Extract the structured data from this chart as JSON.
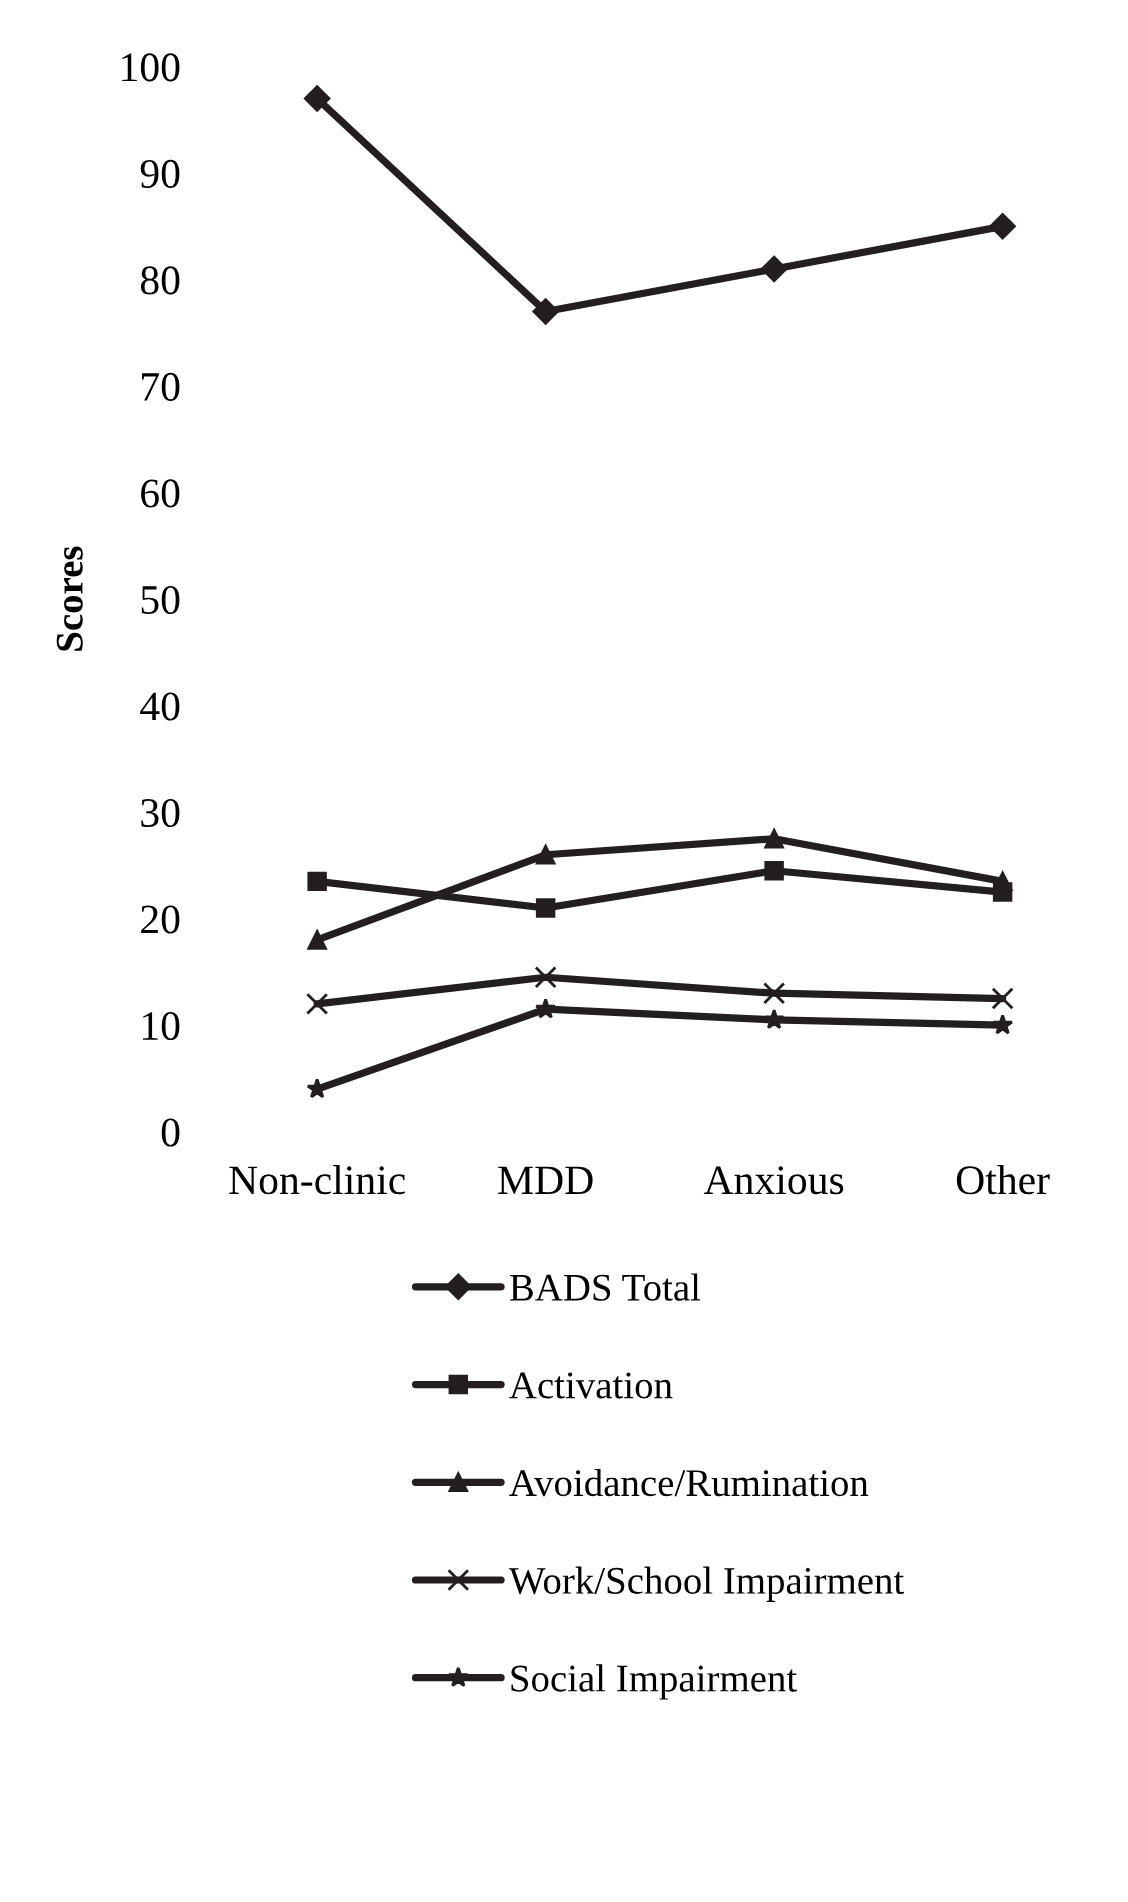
{
  "chart_data": {
    "type": "line",
    "ylabel": "Scores",
    "categories": [
      "Non-clinic",
      "MDD",
      "Anxious",
      "Other"
    ],
    "ylim": [
      0,
      100
    ],
    "yticks": [
      0,
      10,
      20,
      30,
      40,
      50,
      60,
      70,
      80,
      90,
      100
    ],
    "grid": false,
    "legend": "bottom",
    "line_style": "solid",
    "series": [
      {
        "name": "BADS Total",
        "color": "#231f20",
        "marker": "diamond",
        "values": [
          97,
          77,
          81,
          85
        ]
      },
      {
        "name": "Activation",
        "color": "#231f20",
        "marker": "square",
        "values": [
          23.5,
          21,
          24.5,
          22.5
        ]
      },
      {
        "name": "Avoidance/Rumination",
        "color": "#231f20",
        "marker": "triangle",
        "values": [
          18,
          26,
          27.5,
          23.5
        ]
      },
      {
        "name": "Work/School Impairment",
        "color": "#231f20",
        "marker": "cross",
        "values": [
          12,
          14.5,
          13,
          12.5
        ]
      },
      {
        "name": "Social Impairment",
        "color": "#231f20",
        "marker": "star",
        "values": [
          4,
          11.5,
          10.5,
          10
        ]
      }
    ]
  }
}
